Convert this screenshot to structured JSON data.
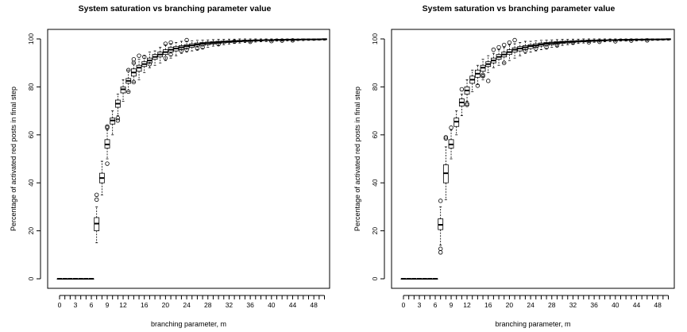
{
  "chart_data": [
    {
      "type": "box",
      "title": "System saturation vs branching parameter value",
      "xlabel": "branching parameter, m",
      "ylabel": "Percentage of activated red posts in final step",
      "x_tick_labels": [
        "0",
        "3",
        "6",
        "9",
        "12",
        "16",
        "20",
        "24",
        "28",
        "32",
        "36",
        "40",
        "44",
        "48"
      ],
      "y_ticks": [
        0,
        20,
        40,
        60,
        80,
        100
      ],
      "ylim": [
        0,
        100
      ],
      "xlim": [
        0,
        50
      ],
      "grid": false,
      "legend": "none",
      "boxes": [
        {
          "m": 0,
          "q1": 0,
          "med": 0,
          "q3": 0,
          "lo": 0,
          "hi": 0,
          "out": []
        },
        {
          "m": 1,
          "q1": 0,
          "med": 0,
          "q3": 0,
          "lo": 0,
          "hi": 0,
          "out": []
        },
        {
          "m": 2,
          "q1": 0,
          "med": 0,
          "q3": 0,
          "lo": 0,
          "hi": 0,
          "out": []
        },
        {
          "m": 3,
          "q1": 0,
          "med": 0,
          "q3": 0,
          "lo": 0,
          "hi": 0,
          "out": []
        },
        {
          "m": 4,
          "q1": 0,
          "med": 0,
          "q3": 0,
          "lo": 0,
          "hi": 0,
          "out": []
        },
        {
          "m": 5,
          "q1": 0,
          "med": 0,
          "q3": 0,
          "lo": 0,
          "hi": 0,
          "out": []
        },
        {
          "m": 6,
          "q1": 0,
          "med": 0,
          "q3": 0,
          "lo": 0,
          "hi": 0,
          "out": []
        },
        {
          "m": 7,
          "q1": 20,
          "med": 23,
          "q3": 25.5,
          "lo": 15,
          "hi": 30,
          "out": [
            33,
            35
          ]
        },
        {
          "m": 8,
          "q1": 40,
          "med": 42,
          "q3": 44,
          "lo": 35,
          "hi": 49,
          "out": []
        },
        {
          "m": 9,
          "q1": 54.5,
          "med": 56,
          "q3": 58,
          "lo": 50,
          "hi": 62,
          "out": [
            48,
            63,
            63.5
          ]
        },
        {
          "m": 10,
          "q1": 64.5,
          "med": 66,
          "q3": 67,
          "lo": 60,
          "hi": 70,
          "out": []
        },
        {
          "m": 11,
          "q1": 71.5,
          "med": 73,
          "q3": 74.5,
          "lo": 68,
          "hi": 77,
          "out": [
            66,
            67
          ]
        },
        {
          "m": 12,
          "q1": 77.5,
          "med": 79,
          "q3": 80,
          "lo": 74,
          "hi": 83,
          "out": []
        },
        {
          "m": 13,
          "q1": 81.5,
          "med": 82.5,
          "q3": 83.5,
          "lo": 78,
          "hi": 87,
          "out": [
            78,
            87
          ]
        },
        {
          "m": 14,
          "q1": 84.5,
          "med": 86,
          "q3": 87.5,
          "lo": 82,
          "hi": 90,
          "out": [
            82,
            90,
            91.5
          ]
        },
        {
          "m": 15,
          "q1": 86.5,
          "med": 88,
          "q3": 89,
          "lo": 83,
          "hi": 91.5,
          "out": [
            93
          ]
        },
        {
          "m": 16,
          "q1": 88.5,
          "med": 89.5,
          "q3": 90.5,
          "lo": 86,
          "hi": 93,
          "out": [
            92.5
          ]
        },
        {
          "m": 17,
          "q1": 90,
          "med": 91,
          "q3": 92,
          "lo": 88,
          "hi": 94.5,
          "out": [
            89.5
          ]
        },
        {
          "m": 18,
          "q1": 91.5,
          "med": 92.5,
          "q3": 93.5,
          "lo": 89,
          "hi": 95,
          "out": []
        },
        {
          "m": 19,
          "q1": 92.5,
          "med": 93.5,
          "q3": 94.5,
          "lo": 90,
          "hi": 96.5,
          "out": []
        },
        {
          "m": 20,
          "q1": 93.5,
          "med": 94.5,
          "q3": 95.5,
          "lo": 91,
          "hi": 97.5,
          "out": [
            92,
            98
          ]
        },
        {
          "m": 21,
          "q1": 94.5,
          "med": 95.5,
          "q3": 96.5,
          "lo": 92,
          "hi": 98,
          "out": [
            93.5,
            98.5
          ]
        },
        {
          "m": 22,
          "q1": 95,
          "med": 96,
          "q3": 96.8,
          "lo": 93,
          "hi": 98.5,
          "out": []
        },
        {
          "m": 23,
          "q1": 95.5,
          "med": 96.5,
          "q3": 97.2,
          "lo": 94,
          "hi": 99,
          "out": [
            95
          ]
        },
        {
          "m": 24,
          "q1": 96,
          "med": 97,
          "q3": 97.6,
          "lo": 94.5,
          "hi": 99,
          "out": [
            95.5,
            99.5
          ]
        },
        {
          "m": 25,
          "q1": 96.5,
          "med": 97.3,
          "q3": 98,
          "lo": 95,
          "hi": 99.2,
          "out": []
        },
        {
          "m": 26,
          "q1": 97,
          "med": 97.7,
          "q3": 98.3,
          "lo": 95.5,
          "hi": 99.4,
          "out": [
            96
          ]
        },
        {
          "m": 27,
          "q1": 97.3,
          "med": 98,
          "q3": 98.5,
          "lo": 96,
          "hi": 99.5,
          "out": [
            96.5
          ]
        },
        {
          "m": 28,
          "q1": 97.6,
          "med": 98.2,
          "q3": 98.7,
          "lo": 96.5,
          "hi": 99.6,
          "out": []
        },
        {
          "m": 29,
          "q1": 97.9,
          "med": 98.4,
          "q3": 98.9,
          "lo": 97,
          "hi": 99.7,
          "out": []
        },
        {
          "m": 30,
          "q1": 98.1,
          "med": 98.6,
          "q3": 99,
          "lo": 97.3,
          "hi": 99.8,
          "out": [
            97.8
          ]
        },
        {
          "m": 31,
          "q1": 98.3,
          "med": 98.8,
          "q3": 99.1,
          "lo": 97.6,
          "hi": 99.8,
          "out": []
        },
        {
          "m": 32,
          "q1": 98.5,
          "med": 98.9,
          "q3": 99.2,
          "lo": 97.9,
          "hi": 99.9,
          "out": []
        },
        {
          "m": 33,
          "q1": 98.7,
          "med": 99,
          "q3": 99.3,
          "lo": 98.1,
          "hi": 99.9,
          "out": [
            98.9
          ]
        },
        {
          "m": 34,
          "q1": 98.8,
          "med": 99.1,
          "q3": 99.4,
          "lo": 98.3,
          "hi": 100,
          "out": []
        },
        {
          "m": 35,
          "q1": 98.9,
          "med": 99.2,
          "q3": 99.5,
          "lo": 98.5,
          "hi": 100,
          "out": []
        },
        {
          "m": 36,
          "q1": 99,
          "med": 99.3,
          "q3": 99.5,
          "lo": 98.6,
          "hi": 100,
          "out": [
            98.8
          ]
        },
        {
          "m": 37,
          "q1": 99.1,
          "med": 99.4,
          "q3": 99.6,
          "lo": 98.7,
          "hi": 100,
          "out": []
        },
        {
          "m": 38,
          "q1": 99.2,
          "med": 99.4,
          "q3": 99.6,
          "lo": 98.8,
          "hi": 100,
          "out": []
        },
        {
          "m": 39,
          "q1": 99.3,
          "med": 99.5,
          "q3": 99.7,
          "lo": 98.9,
          "hi": 100,
          "out": []
        },
        {
          "m": 40,
          "q1": 99.3,
          "med": 99.5,
          "q3": 99.7,
          "lo": 99,
          "hi": 100,
          "out": [
            99.1
          ]
        },
        {
          "m": 41,
          "q1": 99.4,
          "med": 99.6,
          "q3": 99.8,
          "lo": 99.1,
          "hi": 100,
          "out": []
        },
        {
          "m": 42,
          "q1": 99.4,
          "med": 99.6,
          "q3": 99.8,
          "lo": 99.1,
          "hi": 100,
          "out": [
            99.3
          ]
        },
        {
          "m": 43,
          "q1": 99.5,
          "med": 99.7,
          "q3": 99.8,
          "lo": 99.2,
          "hi": 100,
          "out": []
        },
        {
          "m": 44,
          "q1": 99.5,
          "med": 99.7,
          "q3": 99.9,
          "lo": 99.2,
          "hi": 100,
          "out": [
            99.4
          ]
        },
        {
          "m": 45,
          "q1": 99.5,
          "med": 99.7,
          "q3": 99.9,
          "lo": 99.3,
          "hi": 100,
          "out": []
        },
        {
          "m": 46,
          "q1": 99.6,
          "med": 99.8,
          "q3": 99.9,
          "lo": 99.3,
          "hi": 100,
          "out": []
        },
        {
          "m": 47,
          "q1": 99.6,
          "med": 99.8,
          "q3": 99.9,
          "lo": 99.4,
          "hi": 100,
          "out": []
        },
        {
          "m": 48,
          "q1": 99.6,
          "med": 99.8,
          "q3": 99.9,
          "lo": 99.4,
          "hi": 100,
          "out": []
        },
        {
          "m": 49,
          "q1": 99.7,
          "med": 99.8,
          "q3": 100,
          "lo": 99.5,
          "hi": 100,
          "out": []
        },
        {
          "m": 50,
          "q1": 99.7,
          "med": 99.9,
          "q3": 100,
          "lo": 99.5,
          "hi": 100,
          "out": []
        }
      ]
    },
    {
      "type": "box",
      "title": "System saturation vs branching parameter value",
      "xlabel": "branching parameter, m",
      "ylabel": "Percentage of activated red posts in final step",
      "x_tick_labels": [
        "0",
        "3",
        "6",
        "9",
        "12",
        "16",
        "20",
        "24",
        "28",
        "32",
        "36",
        "40",
        "44",
        "48"
      ],
      "y_ticks": [
        0,
        20,
        40,
        60,
        80,
        100
      ],
      "ylim": [
        0,
        100
      ],
      "xlim": [
        0,
        50
      ],
      "grid": false,
      "legend": "none",
      "boxes": [
        {
          "m": 0,
          "q1": 0,
          "med": 0,
          "q3": 0,
          "lo": 0,
          "hi": 0,
          "out": []
        },
        {
          "m": 1,
          "q1": 0,
          "med": 0,
          "q3": 0,
          "lo": 0,
          "hi": 0,
          "out": []
        },
        {
          "m": 2,
          "q1": 0,
          "med": 0,
          "q3": 0,
          "lo": 0,
          "hi": 0,
          "out": []
        },
        {
          "m": 3,
          "q1": 0,
          "med": 0,
          "q3": 0,
          "lo": 0,
          "hi": 0,
          "out": []
        },
        {
          "m": 4,
          "q1": 0,
          "med": 0,
          "q3": 0,
          "lo": 0,
          "hi": 0,
          "out": []
        },
        {
          "m": 5,
          "q1": 0,
          "med": 0,
          "q3": 0,
          "lo": 0,
          "hi": 0,
          "out": []
        },
        {
          "m": 6,
          "q1": 0,
          "med": 0,
          "q3": 0,
          "lo": 0,
          "hi": 0,
          "out": []
        },
        {
          "m": 7,
          "q1": 20.5,
          "med": 22.5,
          "q3": 25,
          "lo": 14,
          "hi": 30,
          "out": [
            32.5,
            11,
            12.5
          ]
        },
        {
          "m": 8,
          "q1": 40,
          "med": 44,
          "q3": 47.5,
          "lo": 33,
          "hi": 55,
          "out": [
            58.5,
            59
          ]
        },
        {
          "m": 9,
          "q1": 54.5,
          "med": 56,
          "q3": 58,
          "lo": 50,
          "hi": 62,
          "out": [
            63
          ]
        },
        {
          "m": 10,
          "q1": 63.5,
          "med": 65.5,
          "q3": 67,
          "lo": 60,
          "hi": 70,
          "out": []
        },
        {
          "m": 11,
          "q1": 72,
          "med": 73.5,
          "q3": 75,
          "lo": 68,
          "hi": 77,
          "out": [
            79
          ]
        },
        {
          "m": 12,
          "q1": 77,
          "med": 78.5,
          "q3": 80,
          "lo": 74,
          "hi": 83,
          "out": [
            73,
            72.5
          ]
        },
        {
          "m": 13,
          "q1": 81.5,
          "med": 83,
          "q3": 84.5,
          "lo": 78,
          "hi": 87,
          "out": []
        },
        {
          "m": 14,
          "q1": 84,
          "med": 85.5,
          "q3": 87,
          "lo": 81,
          "hi": 89,
          "out": [
            80.5
          ]
        },
        {
          "m": 15,
          "q1": 86.5,
          "med": 88,
          "q3": 89,
          "lo": 83,
          "hi": 91.5,
          "out": [
            84.5,
            85
          ]
        },
        {
          "m": 16,
          "q1": 88.5,
          "med": 89.5,
          "q3": 90.5,
          "lo": 86,
          "hi": 93,
          "out": [
            82.5
          ]
        },
        {
          "m": 17,
          "q1": 90,
          "med": 91,
          "q3": 92,
          "lo": 88,
          "hi": 94,
          "out": [
            95.5
          ]
        },
        {
          "m": 18,
          "q1": 91.5,
          "med": 92.5,
          "q3": 93.5,
          "lo": 89,
          "hi": 95.5,
          "out": [
            96.5
          ]
        },
        {
          "m": 19,
          "q1": 92.5,
          "med": 93.5,
          "q3": 94.5,
          "lo": 90,
          "hi": 96.5,
          "out": [
            97.5,
            90
          ]
        },
        {
          "m": 20,
          "q1": 93.5,
          "med": 94.5,
          "q3": 95.5,
          "lo": 91,
          "hi": 97.5,
          "out": [
            98.5
          ]
        },
        {
          "m": 21,
          "q1": 94.5,
          "med": 95.5,
          "q3": 96.3,
          "lo": 92,
          "hi": 98,
          "out": [
            99.5
          ]
        },
        {
          "m": 22,
          "q1": 95,
          "med": 96,
          "q3": 96.8,
          "lo": 93,
          "hi": 98.5,
          "out": []
        },
        {
          "m": 23,
          "q1": 95.5,
          "med": 96.5,
          "q3": 97.2,
          "lo": 94,
          "hi": 99,
          "out": [
            95
          ]
        },
        {
          "m": 24,
          "q1": 96,
          "med": 97,
          "q3": 97.6,
          "lo": 94.5,
          "hi": 99,
          "out": []
        },
        {
          "m": 25,
          "q1": 96.5,
          "med": 97.3,
          "q3": 98,
          "lo": 95,
          "hi": 99.2,
          "out": [
            96
          ]
        },
        {
          "m": 26,
          "q1": 97,
          "med": 97.7,
          "q3": 98.3,
          "lo": 95.5,
          "hi": 99.4,
          "out": []
        },
        {
          "m": 27,
          "q1": 97.3,
          "med": 98,
          "q3": 98.5,
          "lo": 96,
          "hi": 99.5,
          "out": [
            96.5
          ]
        },
        {
          "m": 28,
          "q1": 97.6,
          "med": 98.2,
          "q3": 98.7,
          "lo": 96.5,
          "hi": 99.6,
          "out": []
        },
        {
          "m": 29,
          "q1": 97.9,
          "med": 98.4,
          "q3": 98.9,
          "lo": 97,
          "hi": 99.7,
          "out": [
            97.3
          ]
        },
        {
          "m": 30,
          "q1": 98.1,
          "med": 98.6,
          "q3": 99,
          "lo": 97.3,
          "hi": 99.8,
          "out": []
        },
        {
          "m": 31,
          "q1": 98.3,
          "med": 98.8,
          "q3": 99.1,
          "lo": 97.6,
          "hi": 99.8,
          "out": []
        },
        {
          "m": 32,
          "q1": 98.5,
          "med": 98.9,
          "q3": 99.2,
          "lo": 97.9,
          "hi": 99.9,
          "out": [
            98.4
          ]
        },
        {
          "m": 33,
          "q1": 98.7,
          "med": 99,
          "q3": 99.3,
          "lo": 98.1,
          "hi": 99.9,
          "out": []
        },
        {
          "m": 34,
          "q1": 98.8,
          "med": 99.1,
          "q3": 99.4,
          "lo": 98.3,
          "hi": 100,
          "out": []
        },
        {
          "m": 35,
          "q1": 98.9,
          "med": 99.2,
          "q3": 99.5,
          "lo": 98.5,
          "hi": 100,
          "out": [
            98.6
          ]
        },
        {
          "m": 36,
          "q1": 99,
          "med": 99.3,
          "q3": 99.5,
          "lo": 98.6,
          "hi": 100,
          "out": []
        },
        {
          "m": 37,
          "q1": 99.1,
          "med": 99.4,
          "q3": 99.6,
          "lo": 98.7,
          "hi": 100,
          "out": [
            98.8
          ]
        },
        {
          "m": 38,
          "q1": 99.2,
          "med": 99.4,
          "q3": 99.6,
          "lo": 98.8,
          "hi": 100,
          "out": []
        },
        {
          "m": 39,
          "q1": 99.3,
          "med": 99.5,
          "q3": 99.7,
          "lo": 98.9,
          "hi": 100,
          "out": []
        },
        {
          "m": 40,
          "q1": 99.3,
          "med": 99.5,
          "q3": 99.7,
          "lo": 99,
          "hi": 100,
          "out": [
            99
          ]
        },
        {
          "m": 41,
          "q1": 99.4,
          "med": 99.6,
          "q3": 99.8,
          "lo": 99.1,
          "hi": 100,
          "out": []
        },
        {
          "m": 42,
          "q1": 99.4,
          "med": 99.6,
          "q3": 99.8,
          "lo": 99.1,
          "hi": 100,
          "out": []
        },
        {
          "m": 43,
          "q1": 99.5,
          "med": 99.7,
          "q3": 99.8,
          "lo": 99.2,
          "hi": 100,
          "out": [
            99.3
          ]
        },
        {
          "m": 44,
          "q1": 99.5,
          "med": 99.7,
          "q3": 99.9,
          "lo": 99.2,
          "hi": 100,
          "out": []
        },
        {
          "m": 45,
          "q1": 99.5,
          "med": 99.7,
          "q3": 99.9,
          "lo": 99.3,
          "hi": 100,
          "out": []
        },
        {
          "m": 46,
          "q1": 99.6,
          "med": 99.8,
          "q3": 99.9,
          "lo": 99.3,
          "hi": 100,
          "out": [
            99.4
          ]
        },
        {
          "m": 47,
          "q1": 99.6,
          "med": 99.8,
          "q3": 99.9,
          "lo": 99.4,
          "hi": 100,
          "out": []
        },
        {
          "m": 48,
          "q1": 99.6,
          "med": 99.8,
          "q3": 99.9,
          "lo": 99.4,
          "hi": 100,
          "out": []
        },
        {
          "m": 49,
          "q1": 99.7,
          "med": 99.8,
          "q3": 100,
          "lo": 99.5,
          "hi": 100,
          "out": []
        },
        {
          "m": 50,
          "q1": 99.7,
          "med": 99.9,
          "q3": 100,
          "lo": 99.5,
          "hi": 100,
          "out": []
        }
      ]
    }
  ]
}
